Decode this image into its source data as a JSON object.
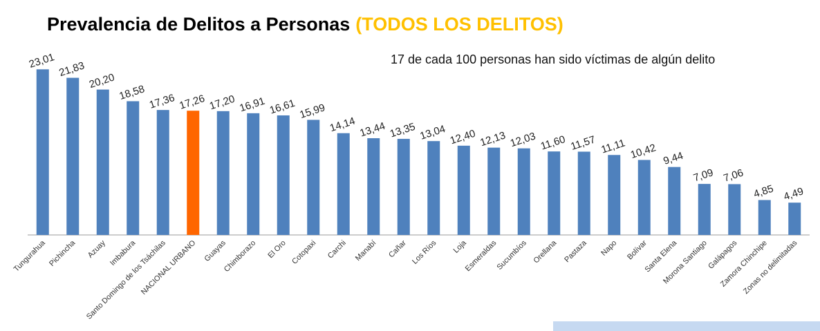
{
  "chart_data": {
    "type": "bar",
    "title": "Prevalencia de Delitos a Personas",
    "title_highlight": "(TODOS LOS DELITOS)",
    "annotation": "17 de cada 100 personas han sido víctimas de algún delito",
    "categories": [
      "Tungurahua",
      "Pichincha",
      "Azuay",
      "Imbabura",
      "Santo Domingo de los Tsáchilas",
      "NACIONAL URBANO",
      "Guayas",
      "Chimborazo",
      "El Oro",
      "Cotopaxi",
      "Carchi",
      "Manabí",
      "Cañar",
      "Los Ríos",
      "Loja",
      "Esmeraldas",
      "Sucumbíos",
      "Orellana",
      "Pastaza",
      "Napo",
      "Bolívar",
      "Santa Elena",
      "Morona Santiago",
      "Galápagos",
      "Zamora Chinchipe",
      "Zonas no delimitadas"
    ],
    "values": [
      23.01,
      21.83,
      20.2,
      18.58,
      17.36,
      17.26,
      17.2,
      16.91,
      16.61,
      15.99,
      14.14,
      13.44,
      13.35,
      13.04,
      12.4,
      12.13,
      12.03,
      11.6,
      11.57,
      11.11,
      10.42,
      9.44,
      7.09,
      7.06,
      4.85,
      4.49
    ],
    "value_labels": [
      "23,01",
      "21,83",
      "20,20",
      "18,58",
      "17,36",
      "17,26",
      "17,20",
      "16,91",
      "16,61",
      "15,99",
      "14,14",
      "13,44",
      "13,35",
      "13,04",
      "12,40",
      "12,13",
      "12,03",
      "11,60",
      "11,57",
      "11,11",
      "10,42",
      "9,44",
      "7,09",
      "7,06",
      "4,85",
      "4,49"
    ],
    "colors": [
      "#4f81bd",
      "#4f81bd",
      "#4f81bd",
      "#4f81bd",
      "#4f81bd",
      "#ff6600",
      "#4f81bd",
      "#4f81bd",
      "#4f81bd",
      "#4f81bd",
      "#4f81bd",
      "#4f81bd",
      "#4f81bd",
      "#4f81bd",
      "#4f81bd",
      "#4f81bd",
      "#4f81bd",
      "#4f81bd",
      "#4f81bd",
      "#4f81bd",
      "#4f81bd",
      "#4f81bd",
      "#4f81bd",
      "#4f81bd",
      "#4f81bd",
      "#4f81bd"
    ],
    "ylim": [
      0,
      24
    ]
  }
}
